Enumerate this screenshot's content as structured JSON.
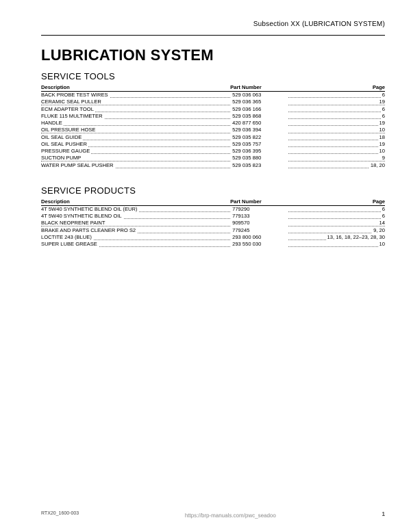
{
  "header": {
    "subsection": "Subsection XX (LUBRICATION SYSTEM)"
  },
  "title": "LUBRICATION SYSTEM",
  "tables": [
    {
      "heading": "SERVICE TOOLS",
      "columns": {
        "desc": "Description",
        "part": "Part Number",
        "page": "Page"
      },
      "rows": [
        {
          "desc": "BACK PROBE TEST WIRES",
          "part": "529 036 063",
          "page": "6"
        },
        {
          "desc": "CERAMIC SEAL PULLER",
          "part": "529 036 365",
          "page": "19"
        },
        {
          "desc": "ECM ADAPTER TOOL",
          "part": "529 036 166",
          "page": "6"
        },
        {
          "desc": "FLUKE 115 MULTIMETER",
          "part": "529 035 868",
          "page": "6"
        },
        {
          "desc": "HANDLE",
          "part": "420 877 650",
          "page": "19"
        },
        {
          "desc": "OIL PRESSURE HOSE",
          "part": "529 036 394",
          "page": "10"
        },
        {
          "desc": "OIL SEAL GUIDE",
          "part": "529 035 822",
          "page": "18"
        },
        {
          "desc": "OIL SEAL PUSHER",
          "part": "529 035 757",
          "page": "19"
        },
        {
          "desc": "PRESSURE GAUGE",
          "part": "529 036 395",
          "page": "10"
        },
        {
          "desc": "SUCTION PUMP",
          "part": "529 035 880",
          "page": "9"
        },
        {
          "desc": "WATER PUMP SEAL PUSHER",
          "part": "529 035 823",
          "page": "18, 20"
        }
      ]
    },
    {
      "heading": "SERVICE PRODUCTS",
      "columns": {
        "desc": "Description",
        "part": "Part Number",
        "page": "Page"
      },
      "rows": [
        {
          "desc": "4T 5W40 SYNTHETIC BLEND OIL (EUR)",
          "part": "779290",
          "page": "6"
        },
        {
          "desc": "4T 5W40 SYNTHETIC BLEND OIL",
          "part": "779133",
          "page": "6"
        },
        {
          "desc": "BLACK NEOPRENE PAINT",
          "part": "909570",
          "page": "14"
        },
        {
          "desc": "BRAKE AND PARTS CLEANER PRO S2",
          "part": "779245",
          "page": "9, 20"
        },
        {
          "desc": "LOCTITE 243 (BLUE)",
          "part": "293 800 060",
          "page": "13, 16, 18, 22–23, 28, 30"
        },
        {
          "desc": "SUPER LUBE GREASE",
          "part": "293 550 030",
          "page": "10"
        }
      ]
    }
  ],
  "footer": {
    "code": "RTX20_1600-003",
    "url": "https://brp-manuals.com/pwc_seadoo",
    "page": "1"
  }
}
